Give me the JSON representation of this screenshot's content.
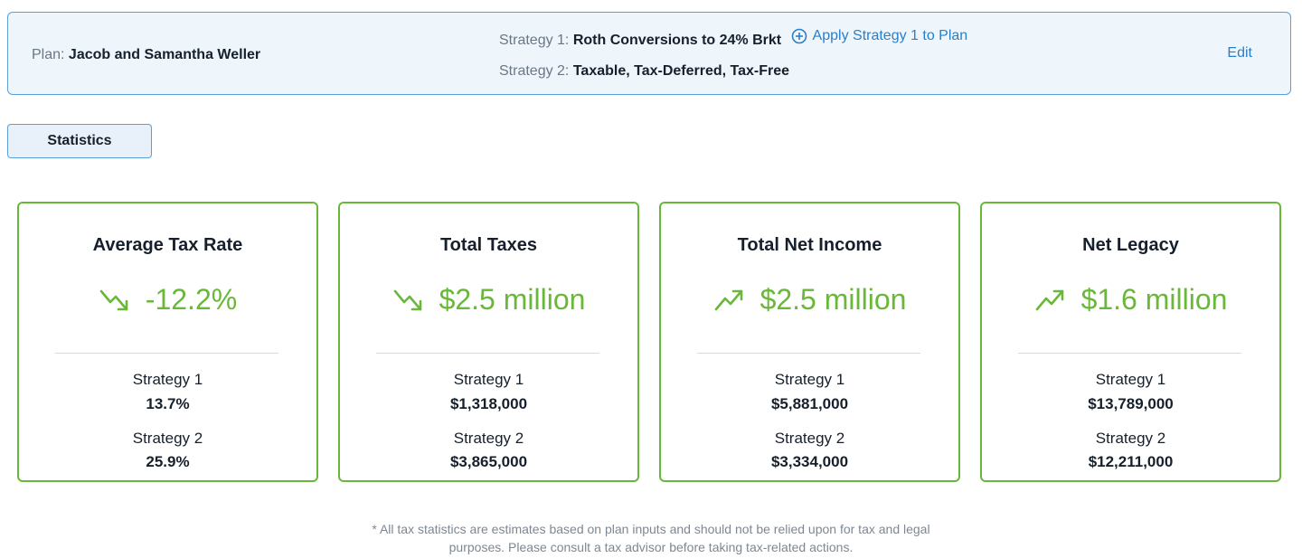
{
  "plan": {
    "label": "Plan:",
    "name": "Jacob and Samantha Weller",
    "strategy1_label": "Strategy 1:",
    "strategy1_name": "Roth Conversions to 24% Brkt",
    "apply_label": "Apply Strategy 1 to Plan",
    "strategy2_label": "Strategy 2:",
    "strategy2_name": "Taxable, Tax-Deferred, Tax-Free",
    "edit_label": "Edit"
  },
  "tabs": {
    "statistics": "Statistics"
  },
  "colors": {
    "accent_green": "#6ab83a",
    "link_blue": "#2a7fc9"
  },
  "cards": [
    {
      "title": "Average Tax Rate",
      "value": "-12.2%",
      "trend": "down",
      "icon": "trend-down-icon",
      "s1_label": "Strategy 1",
      "s1_value": "13.7%",
      "s2_label": "Strategy 2",
      "s2_value": "25.9%"
    },
    {
      "title": "Total Taxes",
      "value": "$2.5 million",
      "trend": "down",
      "icon": "trend-down-icon",
      "s1_label": "Strategy 1",
      "s1_value": "$1,318,000",
      "s2_label": "Strategy 2",
      "s2_value": "$3,865,000"
    },
    {
      "title": "Total Net Income",
      "value": "$2.5 million",
      "trend": "up",
      "icon": "trend-up-icon",
      "s1_label": "Strategy 1",
      "s1_value": "$5,881,000",
      "s2_label": "Strategy 2",
      "s2_value": "$3,334,000"
    },
    {
      "title": "Net Legacy",
      "value": "$1.6 million",
      "trend": "up",
      "icon": "trend-up-icon",
      "s1_label": "Strategy 1",
      "s1_value": "$13,789,000",
      "s2_label": "Strategy 2",
      "s2_value": "$12,211,000"
    }
  ],
  "disclaimer": "* All tax statistics are estimates based on plan inputs and should not be relied upon for tax and legal purposes. Please consult a tax advisor before taking tax-related actions."
}
